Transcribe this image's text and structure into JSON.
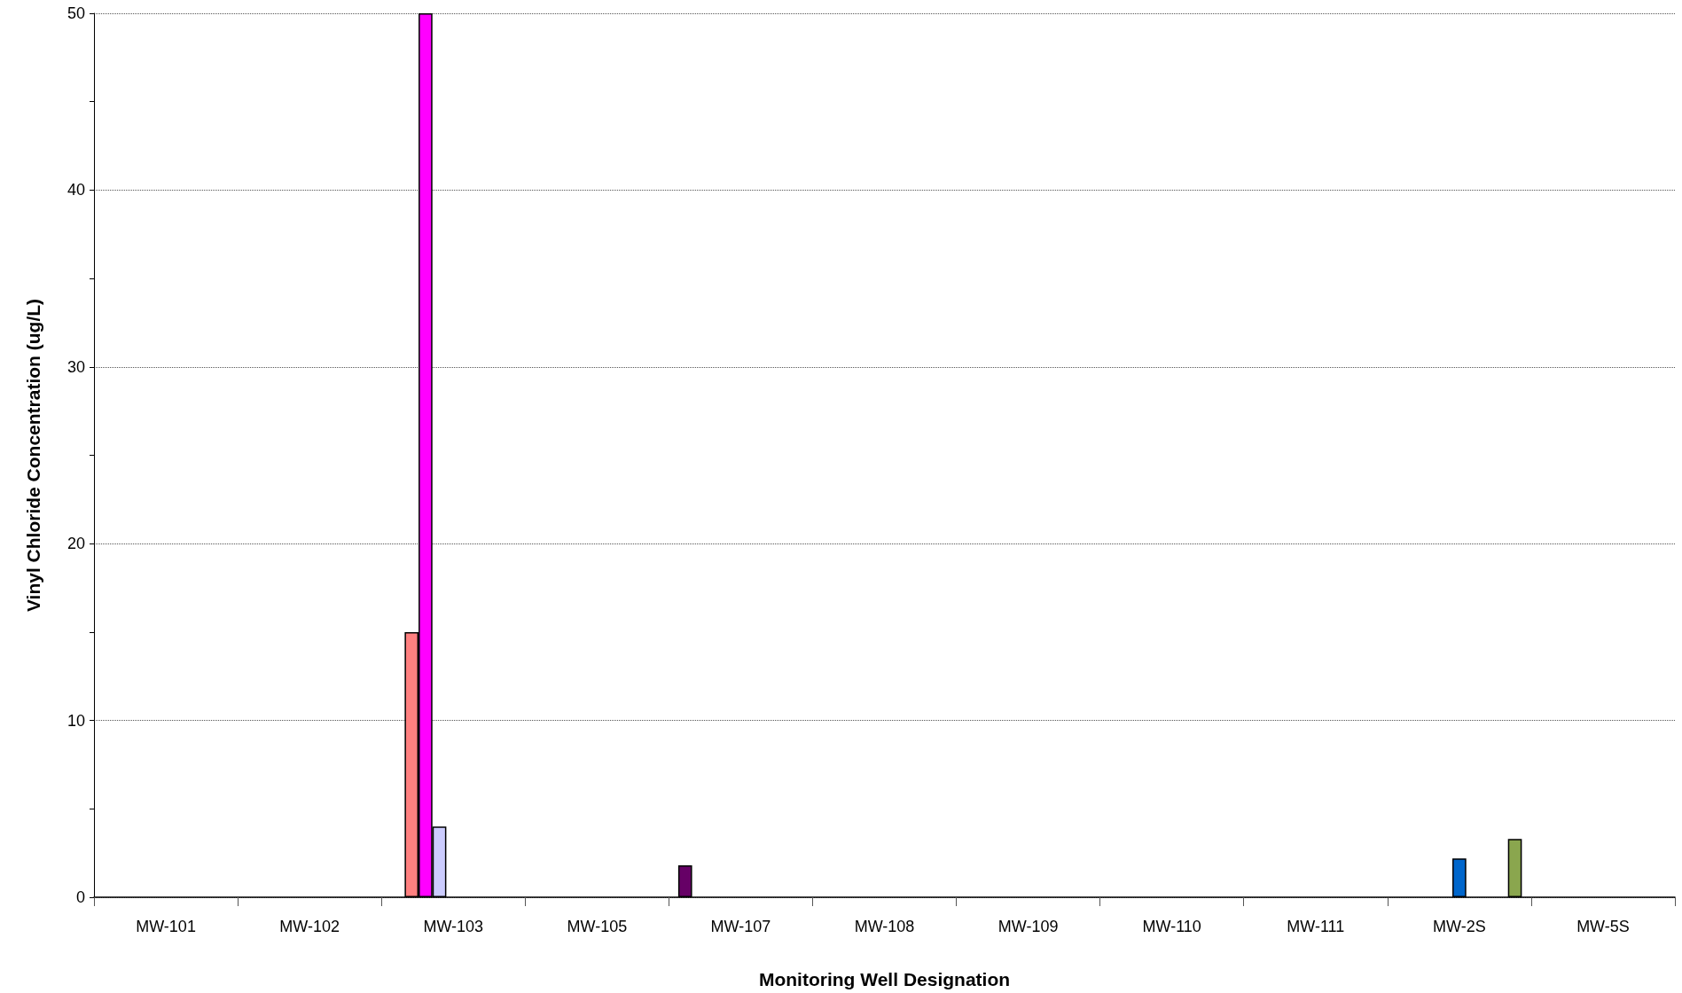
{
  "chart_data": {
    "type": "bar",
    "xlabel": "Monitoring Well Designation",
    "ylabel": "Vinyl Chloride Concentration (ug/L)",
    "categories": [
      "MW-101",
      "MW-102",
      "MW-103",
      "MW-105",
      "MW-107",
      "MW-108",
      "MW-109",
      "MW-110",
      "MW-111",
      "MW-2S",
      "MW-5S"
    ],
    "series": [
      {
        "color": "#660066",
        "values": [
          null,
          null,
          null,
          null,
          1.8,
          null,
          null,
          null,
          null,
          null,
          null
        ]
      },
      {
        "color": "#ff8080",
        "values": [
          null,
          null,
          15,
          null,
          null,
          null,
          null,
          null,
          null,
          null,
          null
        ]
      },
      {
        "color": "#ff00ff",
        "values": [
          null,
          null,
          50,
          null,
          null,
          null,
          null,
          null,
          null,
          null,
          null
        ]
      },
      {
        "color": "#ccccff",
        "values": [
          null,
          null,
          4,
          null,
          null,
          null,
          null,
          null,
          null,
          null,
          null
        ]
      },
      {
        "color": "#0066cc",
        "values": [
          null,
          null,
          null,
          null,
          null,
          null,
          null,
          null,
          null,
          2.2,
          null
        ]
      },
      {
        "values": [
          null,
          null,
          null,
          null,
          null,
          null,
          null,
          null,
          null,
          null,
          null
        ]
      },
      {
        "values": [
          null,
          null,
          null,
          null,
          null,
          null,
          null,
          null,
          null,
          null,
          null
        ]
      },
      {
        "values": [
          null,
          null,
          null,
          null,
          null,
          null,
          null,
          null,
          null,
          null,
          null
        ]
      },
      {
        "color": "#8aa64e",
        "values": [
          null,
          null,
          null,
          null,
          null,
          null,
          null,
          null,
          null,
          3.3,
          null
        ]
      }
    ],
    "ylim": [
      0,
      50
    ],
    "yticks": [
      0,
      {
        "value": 5,
        "label": null
      },
      10,
      {
        "value": 15,
        "label": null
      },
      20,
      {
        "value": 25,
        "label": null
      },
      30,
      {
        "value": 35,
        "label": null
      },
      40,
      {
        "value": 45,
        "label": null
      },
      50
    ],
    "grid": "y"
  }
}
